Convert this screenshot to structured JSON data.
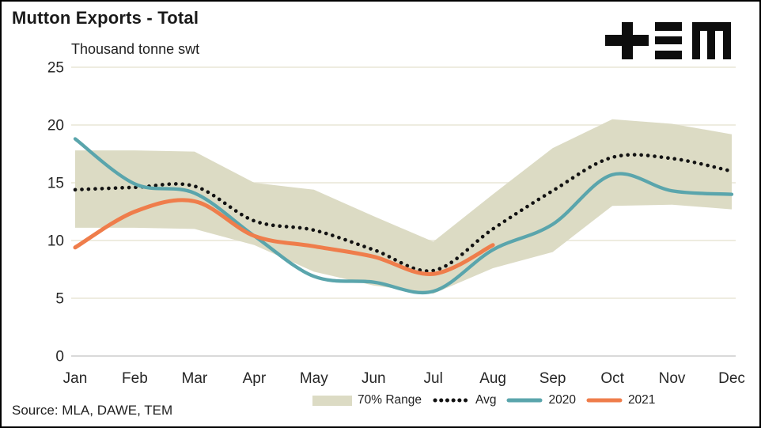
{
  "header": {
    "title": "Mutton Exports - Total",
    "units_label": "Thousand tonne swt",
    "logo_name": "tem-logo"
  },
  "footer": {
    "source": "Source: MLA, DAWE, TEM"
  },
  "legend": {
    "items": [
      {
        "label": "70% Range",
        "type": "band"
      },
      {
        "label": "Avg",
        "type": "dotted"
      },
      {
        "label": "2020",
        "type": "line"
      },
      {
        "label": "2021",
        "type": "line"
      }
    ]
  },
  "colors": {
    "band": "#dcdbc4",
    "avg": "#121212",
    "y2020": "#5aa5ac",
    "y2021": "#ef7d4b",
    "grid": "#eeece0",
    "zero_line": "#d9d9d9",
    "tick_text": "#262626",
    "logo": "#0d0d0d"
  },
  "chart_data": {
    "type": "line",
    "title": "Mutton Exports - Total",
    "ylabel": "Thousand tonne swt",
    "categories": [
      "Jan",
      "Feb",
      "Mar",
      "Apr",
      "May",
      "Jun",
      "Jul",
      "Aug",
      "Sep",
      "Oct",
      "Nov",
      "Dec"
    ],
    "ylim": [
      0,
      25
    ],
    "yticks": [
      0,
      5,
      10,
      15,
      20,
      25
    ],
    "grid": true,
    "legend_position": "bottom",
    "band": {
      "name": "70% Range",
      "color": "#dcdbc4",
      "upper": [
        17.8,
        17.8,
        17.7,
        15.0,
        14.4,
        12.1,
        9.9,
        14.0,
        18.0,
        20.5,
        20.1,
        19.2
      ],
      "lower": [
        11.1,
        11.1,
        11.0,
        9.6,
        7.3,
        6.1,
        5.4,
        7.6,
        9.0,
        13.0,
        13.1,
        12.7
      ]
    },
    "series": [
      {
        "name": "Avg",
        "style": "dotted",
        "color": "#121212",
        "values": [
          14.4,
          14.6,
          14.7,
          11.7,
          10.9,
          9.2,
          7.4,
          11.0,
          14.3,
          17.2,
          17.1,
          16.0
        ]
      },
      {
        "name": "2020",
        "style": "solid",
        "color": "#5aa5ac",
        "values": [
          18.8,
          14.9,
          14.1,
          10.4,
          6.9,
          6.4,
          5.6,
          9.2,
          11.4,
          15.7,
          14.3,
          14.0
        ]
      },
      {
        "name": "2021",
        "style": "solid",
        "color": "#ef7d4b",
        "values": [
          9.4,
          12.5,
          13.4,
          10.4,
          9.5,
          8.6,
          7.1,
          9.6,
          null,
          null,
          null,
          null
        ]
      }
    ]
  }
}
